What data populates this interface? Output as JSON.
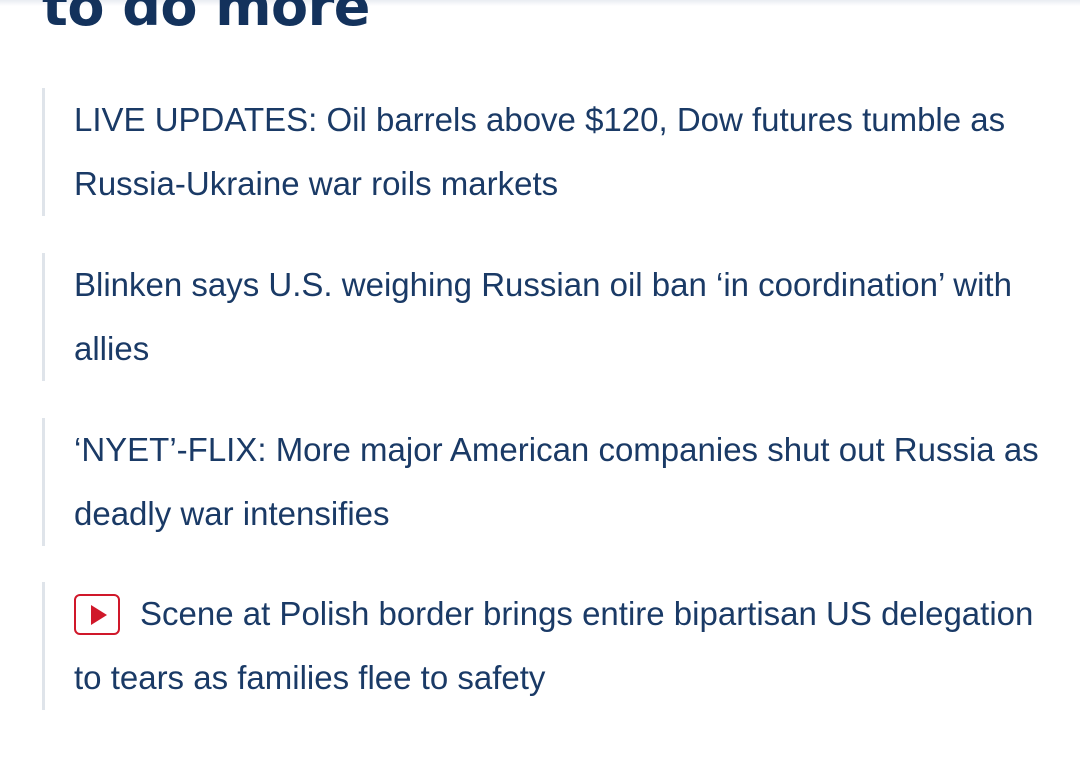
{
  "headline": {
    "text_tail": "to do more"
  },
  "related_links": [
    {
      "text": "LIVE UPDATES: Oil barrels above $120, Dow futures tumble as Russia-Ukraine war roils markets",
      "has_video": false
    },
    {
      "text": "Blinken says U.S. weighing Russian oil ban ‘in coordination’ with allies",
      "has_video": false
    },
    {
      "text": "‘NYET’-FLIX: More major American companies shut out Russia as deadly war intensifies",
      "has_video": false
    },
    {
      "text": "Scene at Polish border brings entire bipartisan US delegation to tears as families flee to safety",
      "has_video": true,
      "icon": "video-play-icon"
    }
  ],
  "colors": {
    "headline": "#13325c",
    "link": "#1a3a66",
    "rule": "#dfe4ea",
    "video_accent": "#d0182a"
  }
}
